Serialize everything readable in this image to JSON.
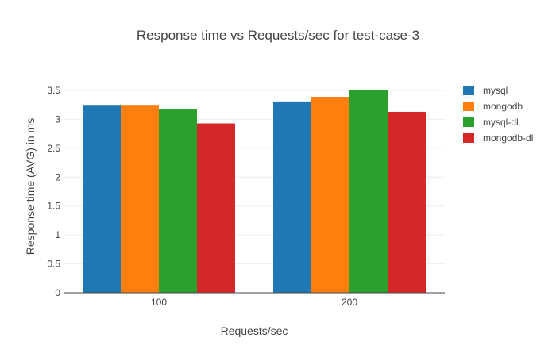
{
  "chart_data": {
    "type": "bar",
    "title": "Response time vs Requests/sec for test-case-3",
    "xlabel": "Requests/sec",
    "ylabel": "Response time (AVG) in ms",
    "categories": [
      "100",
      "200"
    ],
    "ylim": [
      0,
      3.5
    ],
    "yticks": [
      "0",
      "0.5",
      "1",
      "1.5",
      "2",
      "2.5",
      "3",
      "3.5"
    ],
    "ytick_values": [
      0,
      0.5,
      1,
      1.5,
      2,
      2.5,
      3,
      3.5
    ],
    "grid": true,
    "legend_position": "top-right",
    "series": [
      {
        "name": "mysql",
        "color": "#1f77b4",
        "values": [
          3.25,
          3.31
        ]
      },
      {
        "name": "mongodb",
        "color": "#ff7f0e",
        "values": [
          3.25,
          3.39
        ]
      },
      {
        "name": "mysql-dl",
        "color": "#2ca02c",
        "values": [
          3.17,
          3.5
        ]
      },
      {
        "name": "mongodb-dl",
        "color": "#d62728",
        "values": [
          2.93,
          3.13
        ]
      }
    ]
  }
}
